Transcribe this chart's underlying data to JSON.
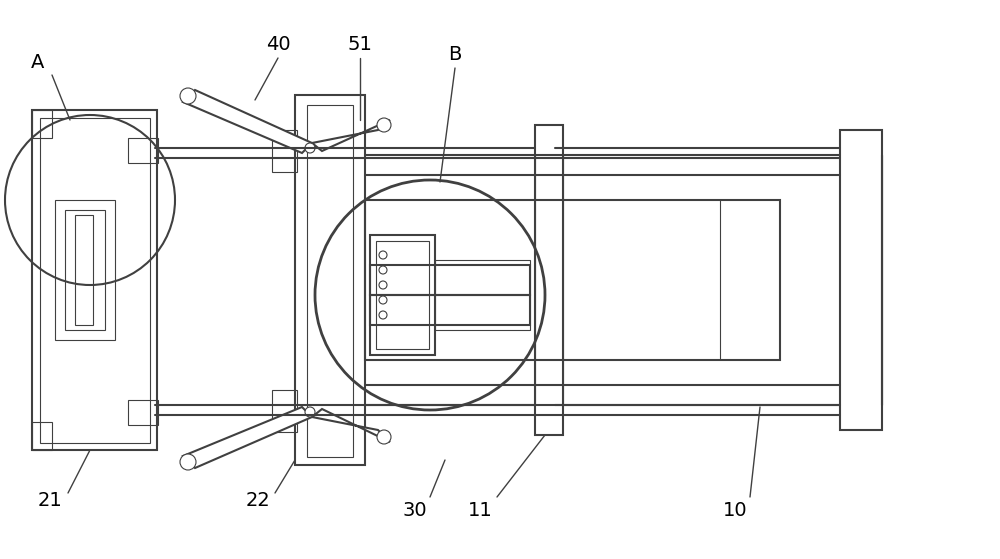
{
  "background_color": "#ffffff",
  "line_color": "#404040",
  "lw": 1.5,
  "lw_thin": 0.8,
  "lw_thick": 2.0,
  "figsize": [
    10.0,
    5.59
  ],
  "dpi": 100,
  "xlim": [
    0,
    1000
  ],
  "ylim": [
    0,
    559
  ]
}
